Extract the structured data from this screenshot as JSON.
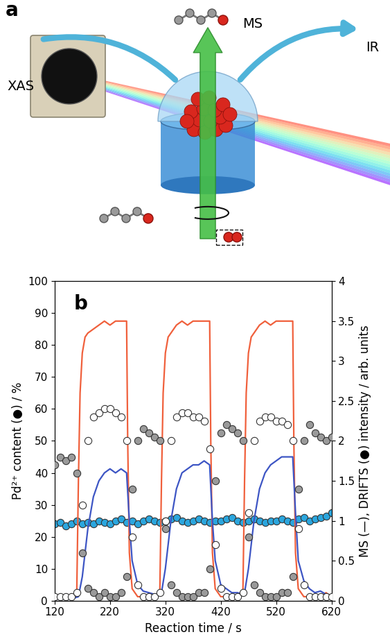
{
  "diagram": {
    "label": "a",
    "texts": [
      "XAS",
      "MS",
      "IR"
    ]
  },
  "chart_data": {
    "type": "line",
    "title": "b",
    "x_label": "Reaction time / s",
    "y_label": "Pd²⁺ content (●) / %",
    "y2_label": "MS (—), DRIFTS (●) intensity / arb. units",
    "xlim": [
      120,
      620
    ],
    "xticks": [
      120,
      220,
      320,
      420,
      520,
      620
    ],
    "ylim": [
      0,
      100
    ],
    "yticks": [
      0,
      10,
      20,
      30,
      40,
      50,
      60,
      70,
      80,
      90,
      100
    ],
    "y2lim": [
      0,
      4
    ],
    "y2ticks": [
      0,
      0.5,
      1,
      1.5,
      2,
      2.5,
      3,
      3.5,
      4
    ],
    "grid": false,
    "series": [
      {
        "type": "scatter",
        "marker": "o",
        "color": "#2ba6de",
        "x": [
          120,
          130,
          140,
          150,
          160,
          170,
          180,
          190,
          200,
          210,
          220,
          230,
          240,
          250,
          260,
          270,
          280,
          290,
          300,
          310,
          320,
          330,
          340,
          350,
          360,
          370,
          380,
          390,
          400,
          410,
          420,
          430,
          440,
          450,
          460,
          470,
          480,
          490,
          500,
          510,
          520,
          530,
          540,
          550,
          560,
          570,
          580,
          590,
          600,
          610,
          620
        ],
        "values": [
          24,
          24.5,
          23.5,
          24,
          25,
          24,
          24.5,
          24,
          25,
          24.5,
          24,
          25,
          25.5,
          24.5,
          25,
          24,
          25,
          25.5,
          25,
          24.5,
          25,
          25.5,
          26,
          25,
          24.5,
          25,
          25.5,
          25,
          24.5,
          25,
          25,
          25.5,
          26,
          25,
          24.5,
          25,
          25.5,
          25,
          24.5,
          25,
          25,
          25.5,
          25,
          24.5,
          25.5,
          26,
          25,
          25.5,
          26,
          26.5,
          27.5
        ]
      },
      {
        "type": "line",
        "line_style": "solid",
        "color": "#f0603c",
        "axis": "y2",
        "x": [
          120,
          130,
          140,
          150,
          160,
          163,
          166,
          170,
          175,
          180,
          190,
          200,
          210,
          220,
          230,
          240,
          250,
          252,
          255,
          260,
          270,
          280,
          290,
          300,
          310,
          313,
          316,
          320,
          325,
          330,
          340,
          350,
          360,
          370,
          380,
          390,
          400,
          402,
          405,
          410,
          420,
          430,
          440,
          450,
          460,
          463,
          466,
          470,
          475,
          480,
          490,
          500,
          510,
          520,
          530,
          540,
          550,
          552,
          555,
          560,
          570,
          580,
          590,
          600,
          610,
          620
        ],
        "values": [
          0.05,
          0.05,
          0.05,
          0.05,
          0.1,
          1.5,
          2.6,
          3.1,
          3.3,
          3.35,
          3.4,
          3.45,
          3.5,
          3.45,
          3.5,
          3.5,
          3.5,
          2.0,
          0.6,
          0.15,
          0.05,
          0.05,
          0.05,
          0.05,
          0.1,
          1.5,
          2.6,
          3.1,
          3.3,
          3.35,
          3.45,
          3.5,
          3.45,
          3.5,
          3.5,
          3.5,
          3.5,
          2.0,
          0.6,
          0.15,
          0.05,
          0.05,
          0.05,
          0.05,
          0.1,
          1.5,
          2.6,
          3.1,
          3.3,
          3.35,
          3.45,
          3.5,
          3.45,
          3.5,
          3.5,
          3.5,
          3.5,
          2.0,
          0.6,
          0.15,
          0.05,
          0.05,
          0.05,
          0.05,
          0.1,
          0.05
        ]
      },
      {
        "type": "line",
        "line_style": "solid",
        "color": "#3d55c4",
        "axis": "y2",
        "x": [
          120,
          150,
          163,
          170,
          180,
          190,
          200,
          210,
          220,
          230,
          240,
          250,
          255,
          260,
          270,
          280,
          290,
          300,
          310,
          313,
          320,
          330,
          340,
          350,
          360,
          370,
          380,
          390,
          400,
          405,
          410,
          420,
          430,
          440,
          450,
          460,
          463,
          470,
          480,
          490,
          500,
          510,
          520,
          530,
          540,
          550,
          555,
          560,
          570,
          580,
          590,
          600,
          610,
          620
        ],
        "values": [
          0.02,
          0.02,
          0.05,
          0.3,
          0.9,
          1.3,
          1.5,
          1.6,
          1.65,
          1.6,
          1.65,
          1.6,
          1.0,
          0.5,
          0.2,
          0.12,
          0.1,
          0.08,
          0.08,
          0.1,
          0.4,
          1.0,
          1.4,
          1.6,
          1.65,
          1.7,
          1.7,
          1.75,
          1.7,
          1.0,
          0.5,
          0.2,
          0.15,
          0.1,
          0.1,
          0.08,
          0.1,
          0.4,
          1.0,
          1.4,
          1.6,
          1.7,
          1.75,
          1.8,
          1.8,
          1.8,
          1.1,
          0.5,
          0.25,
          0.15,
          0.1,
          0.12,
          0.08,
          0.05
        ]
      },
      {
        "type": "scatter",
        "marker": "o",
        "color": "#9a9a9a",
        "axis": "y2",
        "x": [
          120,
          130,
          140,
          150,
          160,
          170,
          180,
          190,
          200,
          210,
          220,
          230,
          240,
          250,
          260,
          270,
          280,
          290,
          300,
          310,
          320,
          330,
          340,
          350,
          360,
          370,
          380,
          390,
          400,
          410,
          420,
          430,
          440,
          450,
          460,
          470,
          480,
          490,
          500,
          510,
          520,
          530,
          540,
          550,
          560,
          570,
          580,
          590,
          600,
          610,
          620
        ],
        "values": [
          1.7,
          1.8,
          1.75,
          1.8,
          1.6,
          0.6,
          0.15,
          0.1,
          0.05,
          0.1,
          0.05,
          0.05,
          0.1,
          0.3,
          1.4,
          2.0,
          2.15,
          2.1,
          2.05,
          2.0,
          0.9,
          0.2,
          0.1,
          0.05,
          0.05,
          0.05,
          0.1,
          0.1,
          0.4,
          1.5,
          2.1,
          2.2,
          2.15,
          2.1,
          2.0,
          0.8,
          0.2,
          0.1,
          0.05,
          0.05,
          0.05,
          0.1,
          0.1,
          0.3,
          1.4,
          2.0,
          2.2,
          2.1,
          2.05,
          2.0,
          2.05
        ]
      },
      {
        "type": "scatter",
        "marker": "o",
        "color": "#ffffff",
        "axis": "y2",
        "x": [
          120,
          130,
          140,
          150,
          160,
          170,
          180,
          190,
          200,
          210,
          220,
          230,
          240,
          250,
          260,
          270,
          280,
          290,
          300,
          310,
          320,
          330,
          340,
          350,
          360,
          370,
          380,
          390,
          400,
          410,
          420,
          430,
          440,
          450,
          460,
          470,
          480,
          490,
          500,
          510,
          520,
          530,
          540,
          550,
          560,
          570,
          580,
          590,
          600,
          610,
          620
        ],
        "values": [
          0.05,
          0.05,
          0.05,
          0.05,
          0.1,
          1.2,
          2.0,
          2.3,
          2.35,
          2.4,
          2.4,
          2.35,
          2.3,
          2.0,
          0.8,
          0.2,
          0.05,
          0.05,
          0.05,
          0.1,
          1.0,
          2.0,
          2.3,
          2.35,
          2.35,
          2.3,
          2.3,
          2.25,
          1.9,
          0.7,
          0.15,
          0.05,
          0.05,
          0.05,
          0.1,
          1.1,
          2.0,
          2.25,
          2.3,
          2.3,
          2.25,
          2.25,
          2.2,
          2.0,
          0.9,
          0.2,
          0.05,
          0.05,
          0.05,
          0.05,
          0.05
        ]
      }
    ]
  }
}
